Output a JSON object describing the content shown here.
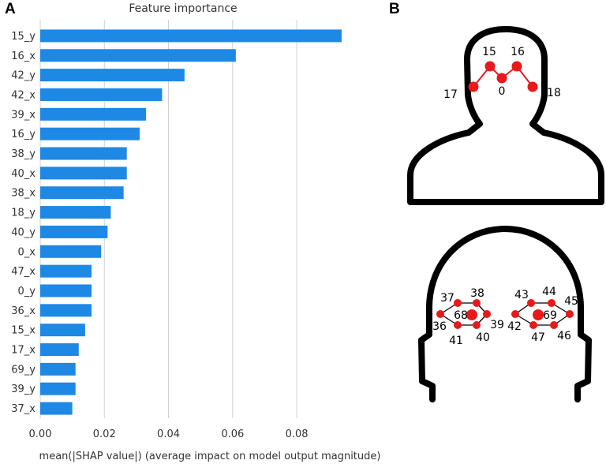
{
  "panels": {
    "a": "A",
    "b": "B"
  },
  "chart_data": {
    "type": "bar",
    "orientation": "horizontal",
    "title": "Feature importance",
    "xlabel": "mean(|SHAP value|) (average impact on model output magnitude)",
    "ylabel": "",
    "xlim": [
      0,
      0.095
    ],
    "xticks": [
      0.0,
      0.02,
      0.04,
      0.06,
      0.08
    ],
    "xtick_labels": [
      "0.00",
      "0.02",
      "0.04",
      "0.06",
      "0.08"
    ],
    "grid": true,
    "color": "#1E88E5",
    "categories": [
      "15_y",
      "16_x",
      "42_y",
      "42_x",
      "39_x",
      "16_y",
      "38_y",
      "40_x",
      "38_x",
      "18_y",
      "40_y",
      "0_x",
      "47_x",
      "0_y",
      "36_x",
      "15_x",
      "17_x",
      "69_y",
      "39_y",
      "37_x"
    ],
    "values": [
      0.094,
      0.061,
      0.045,
      0.038,
      0.033,
      0.031,
      0.027,
      0.027,
      0.026,
      0.022,
      0.021,
      0.019,
      0.016,
      0.016,
      0.016,
      0.014,
      0.012,
      0.011,
      0.011,
      0.01
    ]
  },
  "diagram": {
    "colors": {
      "landmark": "#e8191b",
      "outline": "#000000"
    },
    "body_landmarks": [
      {
        "id": "17",
        "label": "17"
      },
      {
        "id": "15",
        "label": "15"
      },
      {
        "id": "0",
        "label": "0"
      },
      {
        "id": "16",
        "label": "16"
      },
      {
        "id": "18",
        "label": "18"
      }
    ],
    "face_landmarks": [
      {
        "id": "36",
        "label": "36"
      },
      {
        "id": "37",
        "label": "37"
      },
      {
        "id": "38",
        "label": "38"
      },
      {
        "id": "39",
        "label": "39"
      },
      {
        "id": "40",
        "label": "40"
      },
      {
        "id": "41",
        "label": "41"
      },
      {
        "id": "68",
        "label": "68"
      },
      {
        "id": "42",
        "label": "42"
      },
      {
        "id": "43",
        "label": "43"
      },
      {
        "id": "44",
        "label": "44"
      },
      {
        "id": "45",
        "label": "45"
      },
      {
        "id": "46",
        "label": "46"
      },
      {
        "id": "47",
        "label": "47"
      },
      {
        "id": "69",
        "label": "69"
      }
    ]
  }
}
